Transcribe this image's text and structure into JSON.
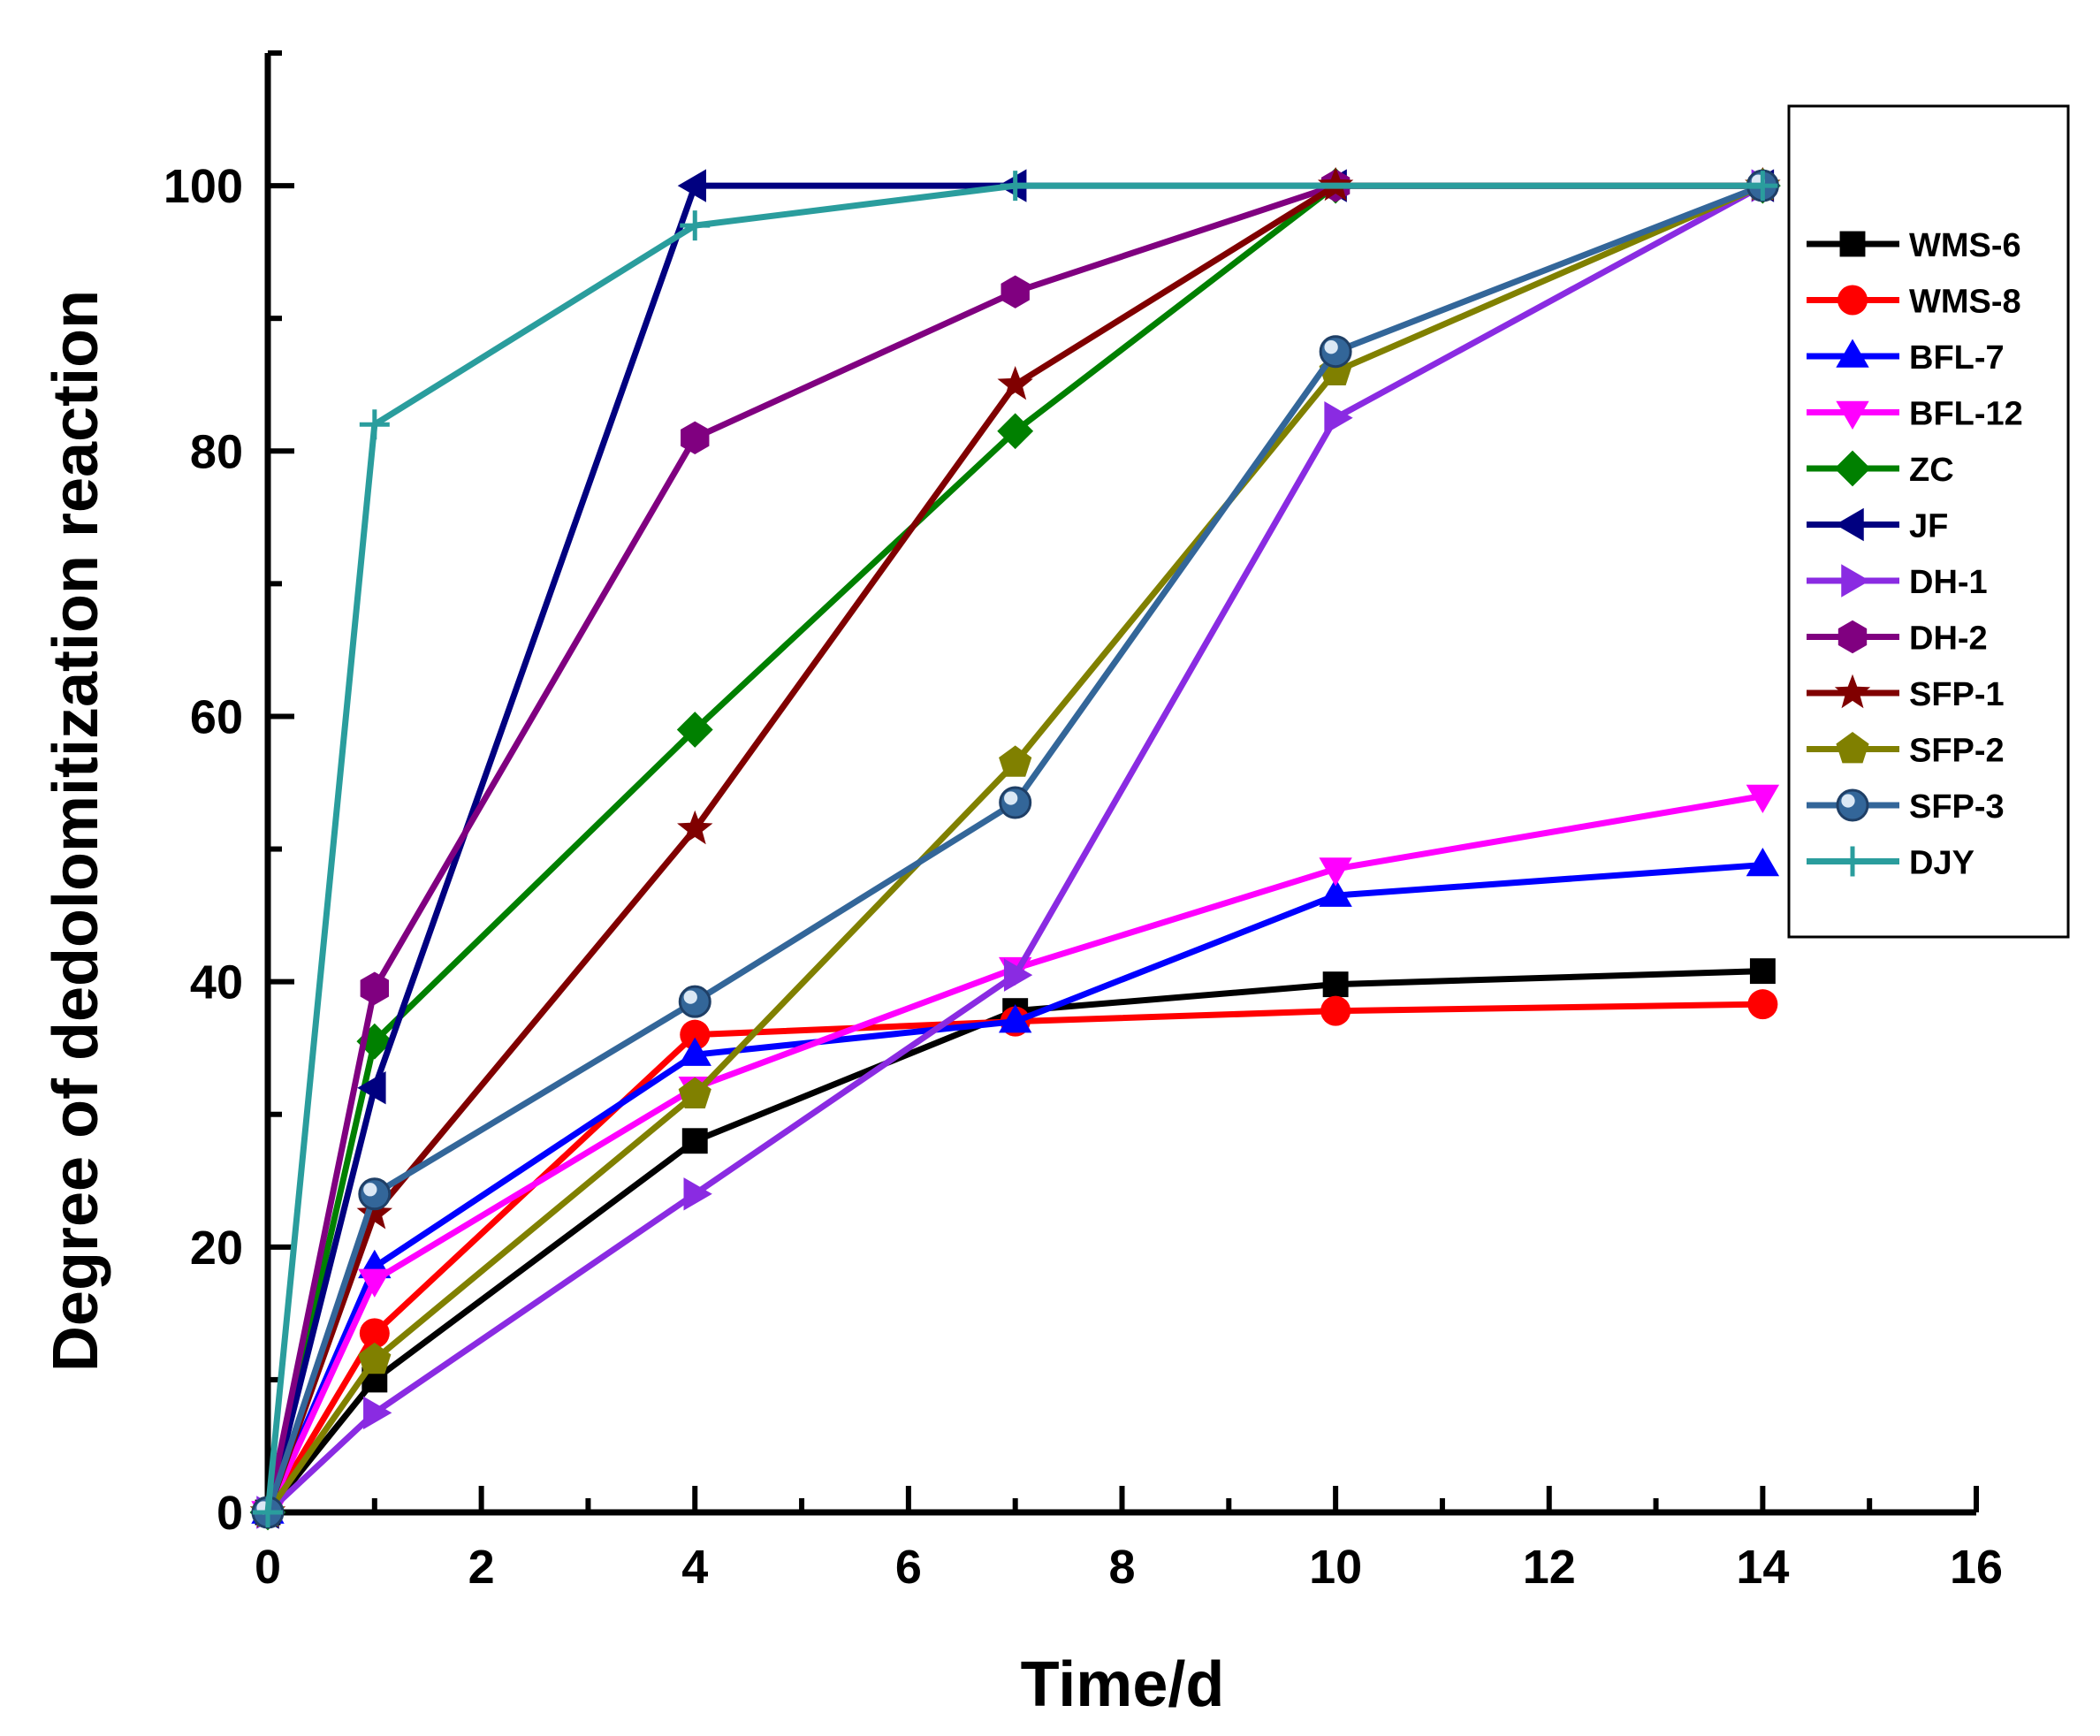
{
  "chart_data": {
    "type": "line",
    "xlabel": "Time/d",
    "ylabel": "Degree of dedolomitization reaction",
    "xlim": [
      0,
      16
    ],
    "ylim": [
      0,
      110
    ],
    "xticks": [
      0,
      2,
      4,
      6,
      8,
      10,
      12,
      14,
      16
    ],
    "yticks": [
      0,
      20,
      40,
      60,
      80,
      100
    ],
    "x": [
      0,
      1,
      4,
      7,
      10,
      14
    ],
    "grid": false,
    "legend_position": "top-right",
    "series": [
      {
        "name": "WMS-6",
        "color": "#000000",
        "marker": "square",
        "x": [
          0,
          1,
          4,
          7,
          10,
          14
        ],
        "values": [
          0,
          10,
          28,
          37.8,
          39.8,
          40.8
        ]
      },
      {
        "name": "WMS-8",
        "color": "#ff0000",
        "marker": "circle",
        "x": [
          0,
          1,
          4,
          7,
          10,
          14
        ],
        "values": [
          0,
          13.5,
          36,
          37,
          37.8,
          38.3
        ]
      },
      {
        "name": "BFL-7",
        "color": "#0000ff",
        "marker": "triangle-up",
        "x": [
          0,
          1,
          4,
          7,
          10,
          14
        ],
        "values": [
          0,
          18.5,
          34.5,
          37,
          46.5,
          48.8
        ]
      },
      {
        "name": "BFL-12",
        "color": "#ff00ff",
        "marker": "triangle-down",
        "x": [
          0,
          1,
          4,
          7,
          10,
          14
        ],
        "values": [
          0,
          17.5,
          32,
          41,
          48.5,
          54
        ]
      },
      {
        "name": "ZC",
        "color": "#008000",
        "marker": "diamond",
        "x": [
          0,
          1,
          4,
          7,
          10,
          14
        ],
        "values": [
          0,
          35.5,
          59,
          81.5,
          100,
          100
        ]
      },
      {
        "name": "JF",
        "color": "#000080",
        "marker": "triangle-left",
        "x": [
          0,
          1,
          4,
          7,
          10,
          14
        ],
        "values": [
          0,
          32,
          100,
          100,
          100,
          100
        ]
      },
      {
        "name": "DH-1",
        "color": "#8a2be2",
        "marker": "triangle-right",
        "x": [
          0,
          1,
          4,
          7,
          10,
          14
        ],
        "values": [
          0,
          7.5,
          24,
          40.5,
          82.5,
          100
        ]
      },
      {
        "name": "DH-2",
        "color": "#800080",
        "marker": "hexagon",
        "x": [
          0,
          1,
          4,
          7,
          10,
          14
        ],
        "values": [
          0,
          39.5,
          81,
          92,
          100,
          100
        ]
      },
      {
        "name": "SFP-1",
        "color": "#800000",
        "marker": "star",
        "x": [
          0,
          1,
          4,
          7,
          10,
          14
        ],
        "values": [
          0,
          22.5,
          51.5,
          85,
          100,
          100
        ]
      },
      {
        "name": "SFP-2",
        "color": "#808000",
        "marker": "pentagon",
        "x": [
          0,
          1,
          4,
          7,
          10,
          14
        ],
        "values": [
          0,
          11.5,
          31.5,
          56.5,
          86,
          100
        ]
      },
      {
        "name": "SFP-3",
        "color": "#336699",
        "marker": "sphere",
        "x": [
          0,
          1,
          4,
          7,
          10,
          14
        ],
        "values": [
          0,
          24,
          38.5,
          53.5,
          87.5,
          100
        ]
      },
      {
        "name": "DJY",
        "color": "#2a9d9d",
        "marker": "cross",
        "x": [
          0,
          1,
          4,
          7,
          14
        ],
        "values": [
          0,
          82,
          97,
          100,
          100
        ]
      }
    ]
  }
}
